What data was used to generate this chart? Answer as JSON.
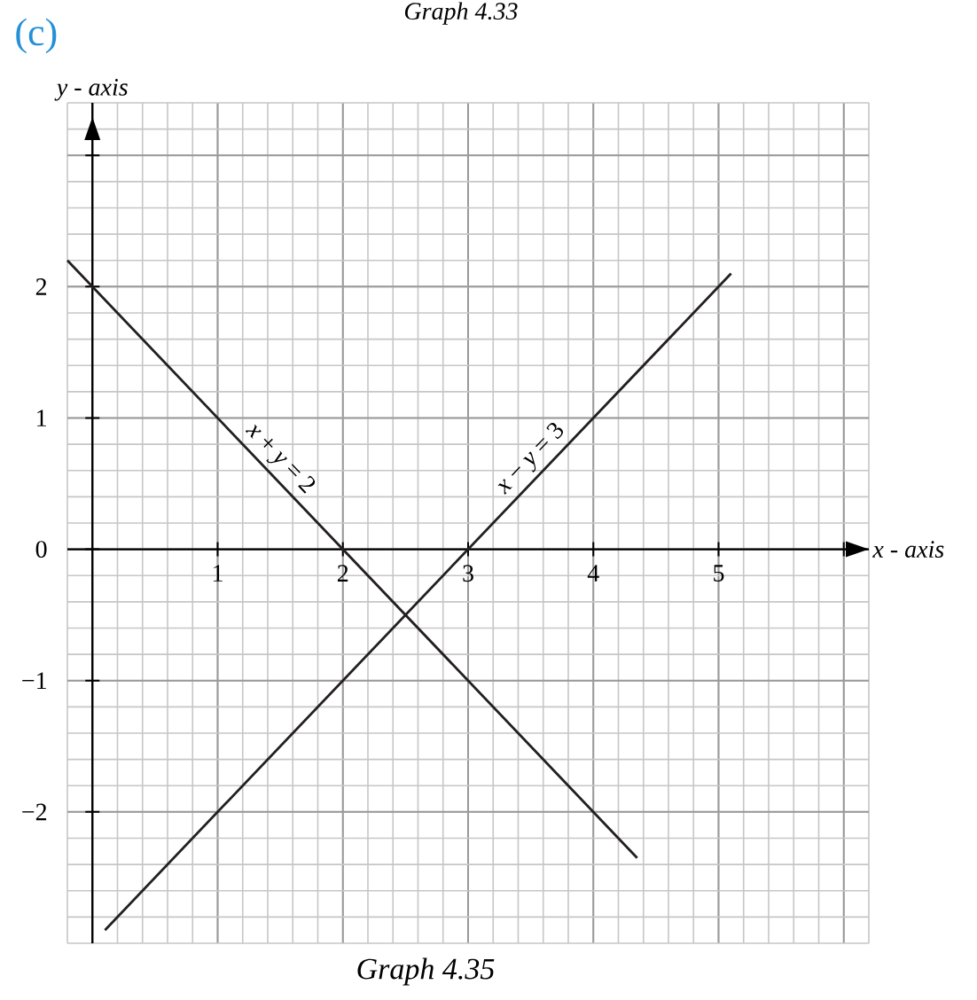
{
  "chart_data": {
    "type": "line",
    "title": "(c)",
    "xlabel": "x - axis",
    "ylabel": "y - axis",
    "xlim": [
      -0.2,
      6.2
    ],
    "ylim": [
      -3,
      3.4
    ],
    "xticks": [
      1,
      2,
      3,
      4,
      5,
      {
        "value": 6,
        "label": null
      }
    ],
    "yticks": [
      {
        "value": -2,
        "label": "−2"
      },
      {
        "value": -1,
        "label": "−1"
      },
      0,
      1,
      2,
      {
        "value": 3,
        "label": null
      }
    ],
    "grid": true,
    "marker": "none",
    "line_style": "solid",
    "series": [
      {
        "color": "#231f20",
        "x": [
          -0.2,
          4.35
        ],
        "values": [
          2.2,
          -2.35
        ]
      },
      {
        "color": "#231f20",
        "x": [
          0.1,
          5.1
        ],
        "values": [
          -2.9,
          2.1
        ]
      }
    ],
    "annotations": [
      "Graph 4.33",
      {
        "text": "*x* + *y* = 2",
        "x": 1.4,
        "y": 0.6
      },
      {
        "text": "*x* − *y* = 3",
        "x": 3.6,
        "y": 0.6
      },
      "Graph 4.35"
    ]
  }
}
